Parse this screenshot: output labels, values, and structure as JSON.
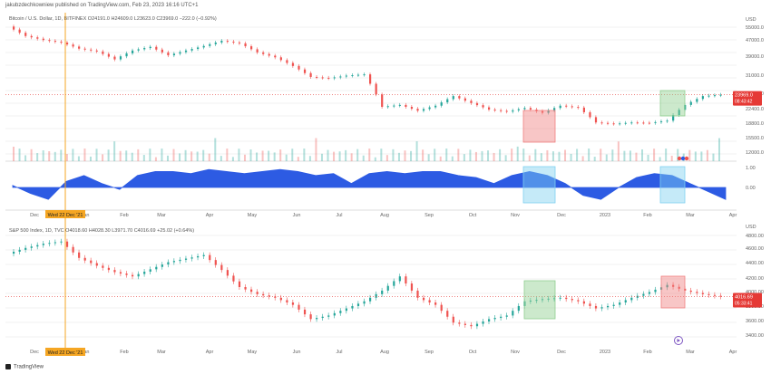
{
  "credit": "jakubzdechkowniew published on TradingView.com, Feb 23, 2023 16:16 UTC+1",
  "brand": "TradingView",
  "colors": {
    "up": "#26a69a",
    "down": "#ef5350",
    "osc": "#2d5be3",
    "vline": "#f5a623",
    "green_box": "#8fce8f",
    "red_box": "#f08080",
    "blue_box": "#7fd0f0",
    "price_tag": "#e53935"
  },
  "chart_data": [
    {
      "type": "candlestick",
      "title": "Bitcoin / U.S. Dollar, 1D, BITFINEX",
      "ohlc_text": "O24191.0 H24609.0 L23623.0 C23969.0 −222.0 (−0.92%)",
      "price_label": "23969.0",
      "time_label": "08:43:42",
      "currency": "USD",
      "y_ticks": [
        "55000.0",
        "47000.0",
        "39000.0",
        "31000.0",
        "25500.0",
        "22400.0",
        "18800.0",
        "15500.0",
        "12000.0"
      ],
      "x_ticks": [
        "Dec",
        "Jan",
        "Feb",
        "Mar",
        "Apr",
        "May",
        "Jun",
        "Jul",
        "Aug",
        "Sep",
        "Oct",
        "Nov",
        "Dec",
        "2023",
        "Feb",
        "Mar",
        "Apr"
      ],
      "closes": [
        57000,
        50500,
        48000,
        46500,
        43000,
        41500,
        37500,
        42000,
        44000,
        39500,
        42000,
        44500,
        47500,
        46000,
        41000,
        38500,
        34500,
        30000,
        29500,
        30500,
        31000,
        20500,
        21000,
        19500,
        20800,
        23500,
        21500,
        19800,
        19300,
        20200,
        19000,
        20800,
        20300,
        16800,
        16500,
        16800,
        16700,
        17200,
        21000,
        23500,
        23900
      ]
    },
    {
      "type": "area",
      "title": "",
      "y_ticks": [
        "1.00",
        "0.00"
      ],
      "values": [
        0.1,
        -0.3,
        -0.6,
        0.3,
        0.6,
        0.2,
        -0.1,
        0.6,
        0.8,
        0.8,
        0.7,
        0.9,
        0.8,
        0.7,
        0.8,
        0.9,
        0.8,
        0.6,
        0.7,
        0.2,
        0.7,
        0.8,
        0.7,
        0.8,
        0.8,
        0.6,
        0.5,
        0.2,
        0.6,
        0.8,
        0.6,
        0.2,
        -0.4,
        -0.6,
        0.0,
        0.5,
        0.7,
        0.6,
        0.2,
        -0.2,
        -0.6
      ]
    },
    {
      "type": "candlestick",
      "title": "S&P 500 Index, 1D, TVC",
      "ohlc_text": "O4018.60 H4028.30 L3971.70 C4016.69 +25.02 (+0.64%)",
      "price_label": "4016.69",
      "time_label": "05:33:41",
      "currency": "USD",
      "y_ticks": [
        "4800.00",
        "4600.00",
        "4400.00",
        "4200.00",
        "4000.00",
        "3800.00",
        "3600.00",
        "3400.00"
      ],
      "x_ticks": [
        "Dec",
        "Jan",
        "Feb",
        "Mar",
        "Apr",
        "May",
        "Jun",
        "Jul",
        "Aug",
        "Sep",
        "Oct",
        "Nov",
        "Dec",
        "2023",
        "Feb",
        "Mar",
        "Apr"
      ],
      "closes": [
        4620,
        4700,
        4760,
        4790,
        4560,
        4450,
        4360,
        4300,
        4400,
        4500,
        4550,
        4600,
        4390,
        4150,
        4050,
        4000,
        3900,
        3700,
        3750,
        3850,
        3950,
        4100,
        4300,
        4000,
        3900,
        3650,
        3600,
        3700,
        3750,
        3950,
        3980,
        4000,
        3950,
        3850,
        3900,
        4000,
        4080,
        4180,
        4100,
        4050,
        4016
      ]
    }
  ],
  "markers": {
    "date_label": "Wed 22 Dec '21"
  },
  "legend_dots": "● ● ●"
}
